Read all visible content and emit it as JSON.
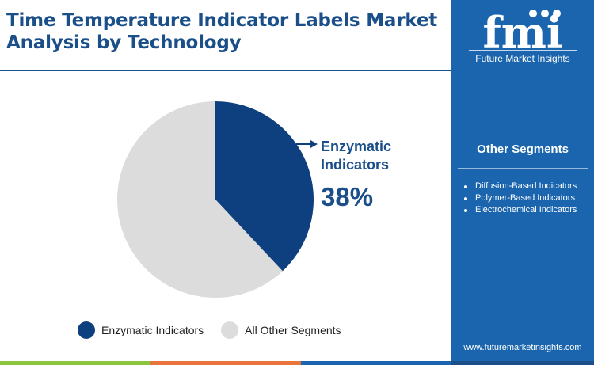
{
  "header": {
    "title": "Time Temperature Indicator Labels Market Analysis by Technology"
  },
  "brand": {
    "logo_text": "fmi",
    "name": "Future Market Insights",
    "website": "www.futuremarketinsights.com"
  },
  "sidebar": {
    "title": "Other Segments",
    "items": [
      "Diffusion-Based Indicators",
      "Polymer-Based Indicators",
      "Electrochemical Indicators"
    ]
  },
  "callout": {
    "label": "Enzymatic Indicators",
    "value": "38%"
  },
  "colors": {
    "primary": "#0e3f7e",
    "other": "#dcdcdc",
    "title": "#1a4f8a",
    "sidebar": "#1a65ad"
  },
  "chart_data": {
    "type": "pie",
    "title": "Time Temperature Indicator Labels Market Analysis by Technology",
    "start_angle_deg": 0,
    "direction": "clockwise",
    "slices": [
      {
        "label": "Enzymatic Indicators",
        "value": 38,
        "color": "#0e3f7e"
      },
      {
        "label": "All Other Segments",
        "value": 62,
        "color": "#dcdcdc"
      }
    ],
    "legend": [
      "Enzymatic Indicators",
      "All Other Segments"
    ],
    "legend_position": "bottom"
  }
}
